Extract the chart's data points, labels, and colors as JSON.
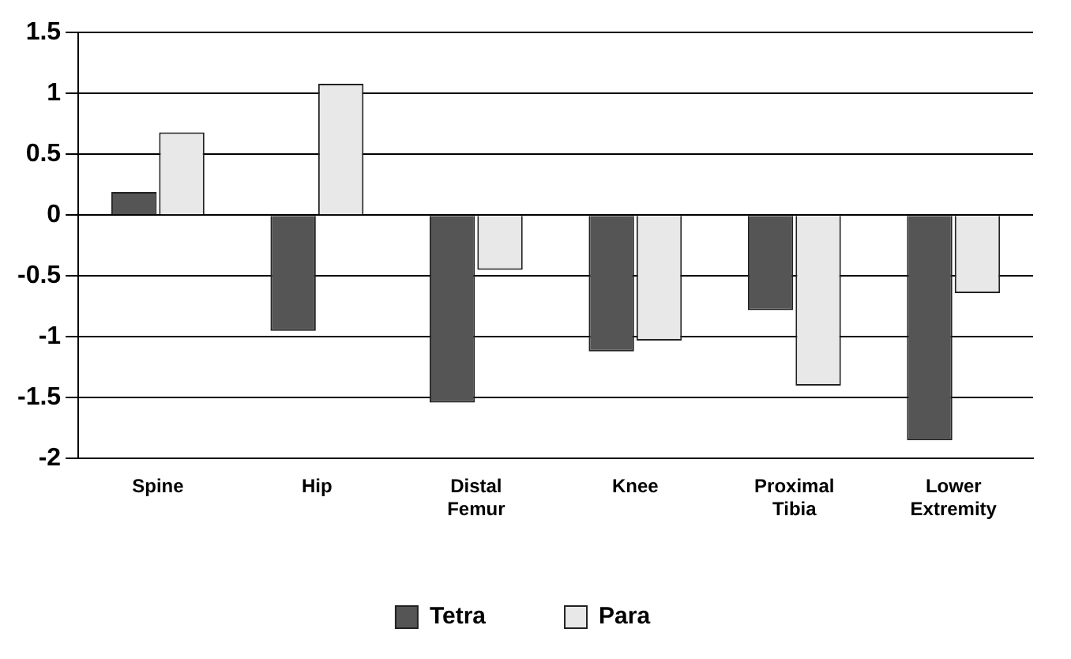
{
  "chart_data": {
    "type": "bar",
    "categories": [
      "Spine",
      "Hip",
      "Distal Femur",
      "Knee",
      "Proximal Tibia",
      "Lower Extremity"
    ],
    "series": [
      {
        "name": "Tetra",
        "color": "#555555",
        "values": [
          0.19,
          -0.95,
          -1.54,
          -1.12,
          -0.78,
          -1.85
        ]
      },
      {
        "name": "Para",
        "color": "#e8e8e8",
        "values": [
          0.68,
          1.08,
          -0.45,
          -1.03,
          -1.4,
          -0.64
        ]
      }
    ],
    "ylim": [
      -2,
      1.5
    ],
    "yticks": [
      -2,
      -1.5,
      -1,
      -0.5,
      0,
      0.5,
      1,
      1.5
    ],
    "grid": "y",
    "legend": "bottom"
  }
}
